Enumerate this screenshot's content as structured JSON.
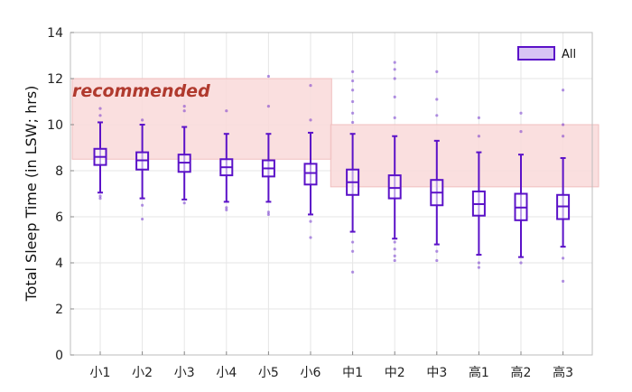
{
  "chart_data": {
    "type": "box",
    "ylabel": "Total Sleep Time (in LSW; hrs)",
    "ylim": [
      0,
      14
    ],
    "yticks": [
      0,
      2,
      4,
      6,
      8,
      10,
      12,
      14
    ],
    "grid": true,
    "legend": {
      "position": "top-right",
      "entries": [
        "All"
      ]
    },
    "categories": [
      "小1",
      "小2",
      "小3",
      "小4",
      "小5",
      "小6",
      "中1",
      "中2",
      "中3",
      "高1",
      "高2",
      "高3"
    ],
    "series": [
      {
        "name": "All",
        "color": "#5B12C8",
        "box": [
          {
            "whislo": 7.05,
            "q1": 8.25,
            "med": 8.6,
            "q3": 8.95,
            "whishi": 10.1
          },
          {
            "whislo": 6.8,
            "q1": 8.05,
            "med": 8.45,
            "q3": 8.8,
            "whishi": 10.0
          },
          {
            "whislo": 6.75,
            "q1": 7.95,
            "med": 8.35,
            "q3": 8.7,
            "whishi": 9.9
          },
          {
            "whislo": 6.65,
            "q1": 7.8,
            "med": 8.15,
            "q3": 8.5,
            "whishi": 9.6
          },
          {
            "whislo": 6.65,
            "q1": 7.75,
            "med": 8.1,
            "q3": 8.45,
            "whishi": 9.6
          },
          {
            "whislo": 6.1,
            "q1": 7.4,
            "med": 7.9,
            "q3": 8.3,
            "whishi": 9.65
          },
          {
            "whislo": 5.35,
            "q1": 6.95,
            "med": 7.5,
            "q3": 8.05,
            "whishi": 9.6
          },
          {
            "whislo": 5.05,
            "q1": 6.8,
            "med": 7.25,
            "q3": 7.8,
            "whishi": 9.5
          },
          {
            "whislo": 4.8,
            "q1": 6.5,
            "med": 7.05,
            "q3": 7.6,
            "whishi": 9.3
          },
          {
            "whislo": 4.35,
            "q1": 6.05,
            "med": 6.55,
            "q3": 7.1,
            "whishi": 8.8
          },
          {
            "whislo": 4.25,
            "q1": 5.85,
            "med": 6.4,
            "q3": 7.0,
            "whishi": 8.7
          },
          {
            "whislo": 4.7,
            "q1": 5.9,
            "med": 6.45,
            "q3": 6.95,
            "whishi": 8.55
          }
        ],
        "outliers": [
          [
            10.7,
            10.4,
            6.8,
            6.9
          ],
          [
            10.2,
            5.9,
            6.5
          ],
          [
            10.8,
            10.6,
            6.6
          ],
          [
            10.6,
            6.4,
            6.3
          ],
          [
            12.1,
            10.8,
            6.1,
            6.2
          ],
          [
            11.7,
            10.2,
            5.1,
            5.8
          ],
          [
            12.3,
            11.9,
            11.5,
            11.0,
            10.5,
            10.1,
            4.9,
            4.5,
            3.6
          ],
          [
            12.7,
            12.4,
            12.0,
            11.2,
            10.3,
            4.9,
            4.6,
            4.3,
            4.1
          ],
          [
            12.3,
            11.1,
            10.4,
            4.5,
            4.1
          ],
          [
            10.3,
            9.5,
            4.0,
            3.8
          ],
          [
            10.5,
            9.7,
            4.0
          ],
          [
            11.5,
            10.0,
            9.5,
            4.2,
            3.2
          ]
        ]
      }
    ],
    "recommended_ranges": [
      {
        "from": "小1",
        "to": "小6",
        "ymin": 8.5,
        "ymax": 12.0
      },
      {
        "from": "中1",
        "to": "高3",
        "ymin": 7.3,
        "ymax": 10.0
      }
    ],
    "annotation": "recommended",
    "colors": {
      "box": "#5B12C8",
      "band_fill": "#F9D9D9",
      "band_edge": "#F0BFBF",
      "annotation": "#B03A2E",
      "grid": "#E6E6E6"
    }
  }
}
